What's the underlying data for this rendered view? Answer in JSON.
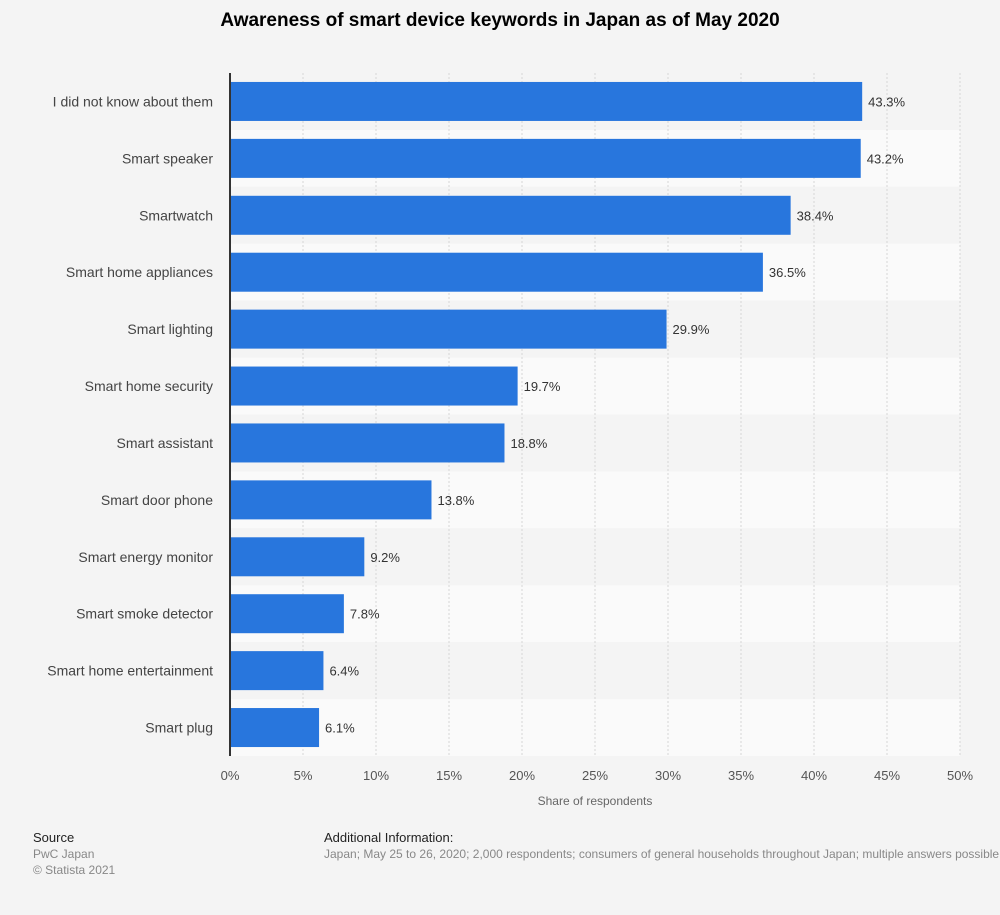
{
  "chart_data": {
    "type": "bar",
    "orientation": "horizontal",
    "title": "Awareness of smart device keywords in Japan as of May 2020",
    "xlabel": "Share of respondents",
    "ylabel": "",
    "xlim": [
      0,
      50
    ],
    "ticks": [
      "0%",
      "5%",
      "10%",
      "15%",
      "20%",
      "25%",
      "30%",
      "35%",
      "40%",
      "45%",
      "50%"
    ],
    "tick_values": [
      0,
      5,
      10,
      15,
      20,
      25,
      30,
      35,
      40,
      45,
      50
    ],
    "grid": true,
    "categories": [
      "I did not know about them",
      "Smart speaker",
      "Smartwatch",
      "Smart home appliances",
      "Smart lighting",
      "Smart home security",
      "Smart assistant",
      "Smart door phone",
      "Smart energy monitor",
      "Smart smoke detector",
      "Smart home entertainment",
      "Smart plug"
    ],
    "values": [
      43.3,
      43.2,
      38.4,
      36.5,
      29.9,
      19.7,
      18.8,
      13.8,
      9.2,
      7.8,
      6.4,
      6.1
    ],
    "value_labels": [
      "43.3%",
      "43.2%",
      "38.4%",
      "36.5%",
      "29.9%",
      "19.7%",
      "18.8%",
      "13.8%",
      "9.2%",
      "7.8%",
      "6.4%",
      "6.1%"
    ],
    "bar_color": "#2876dd"
  },
  "footer": {
    "source_heading": "Source",
    "source": "PwC Japan",
    "copyright": "© Statista 2021",
    "info_heading": "Additional Information:",
    "info": "Japan; May 25 to 26, 2020; 2,000 respondents; consumers of general households throughout Japan; multiple answers possible"
  }
}
